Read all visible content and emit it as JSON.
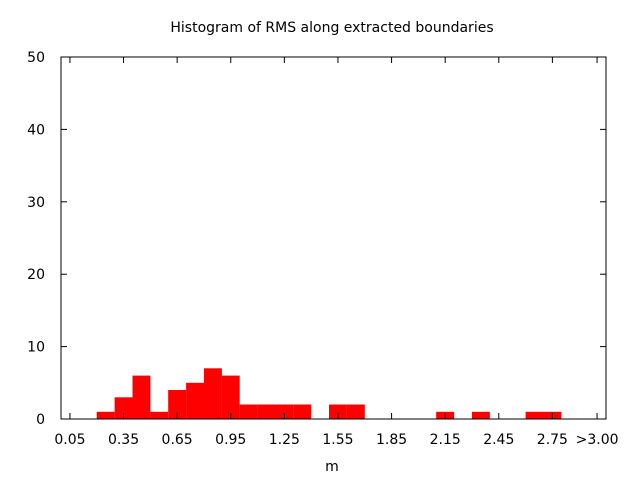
{
  "chart_data": {
    "type": "bar",
    "title": "Histogram of RMS along extracted boundaries",
    "xlabel": "m",
    "ylabel": "",
    "ylim": [
      0,
      50
    ],
    "yticks": [
      "0",
      "10",
      "20",
      "30",
      "40",
      "50"
    ],
    "xlim": [
      0.0,
      3.05
    ],
    "xticks": [
      "0.05",
      "0.35",
      "0.65",
      "0.95",
      "1.25",
      "1.55",
      "1.85",
      "2.15",
      "2.45",
      "2.75",
      ">3.00"
    ],
    "xtick_positions": [
      0.05,
      0.35,
      0.65,
      0.95,
      1.25,
      1.55,
      1.85,
      2.15,
      2.45,
      2.75,
      3.0
    ],
    "bin_width": 0.1,
    "bins": [
      {
        "x": 0.25,
        "value": 1
      },
      {
        "x": 0.35,
        "value": 3
      },
      {
        "x": 0.45,
        "value": 6
      },
      {
        "x": 0.55,
        "value": 1
      },
      {
        "x": 0.65,
        "value": 4
      },
      {
        "x": 0.75,
        "value": 5
      },
      {
        "x": 0.85,
        "value": 7
      },
      {
        "x": 0.95,
        "value": 6
      },
      {
        "x": 1.05,
        "value": 2
      },
      {
        "x": 1.15,
        "value": 2
      },
      {
        "x": 1.25,
        "value": 2
      },
      {
        "x": 1.35,
        "value": 2
      },
      {
        "x": 1.55,
        "value": 2
      },
      {
        "x": 1.65,
        "value": 2
      },
      {
        "x": 2.15,
        "value": 1
      },
      {
        "x": 2.35,
        "value": 1
      },
      {
        "x": 2.65,
        "value": 1
      },
      {
        "x": 2.75,
        "value": 1
      }
    ],
    "bar_color": "#ff0000",
    "grid": false
  }
}
